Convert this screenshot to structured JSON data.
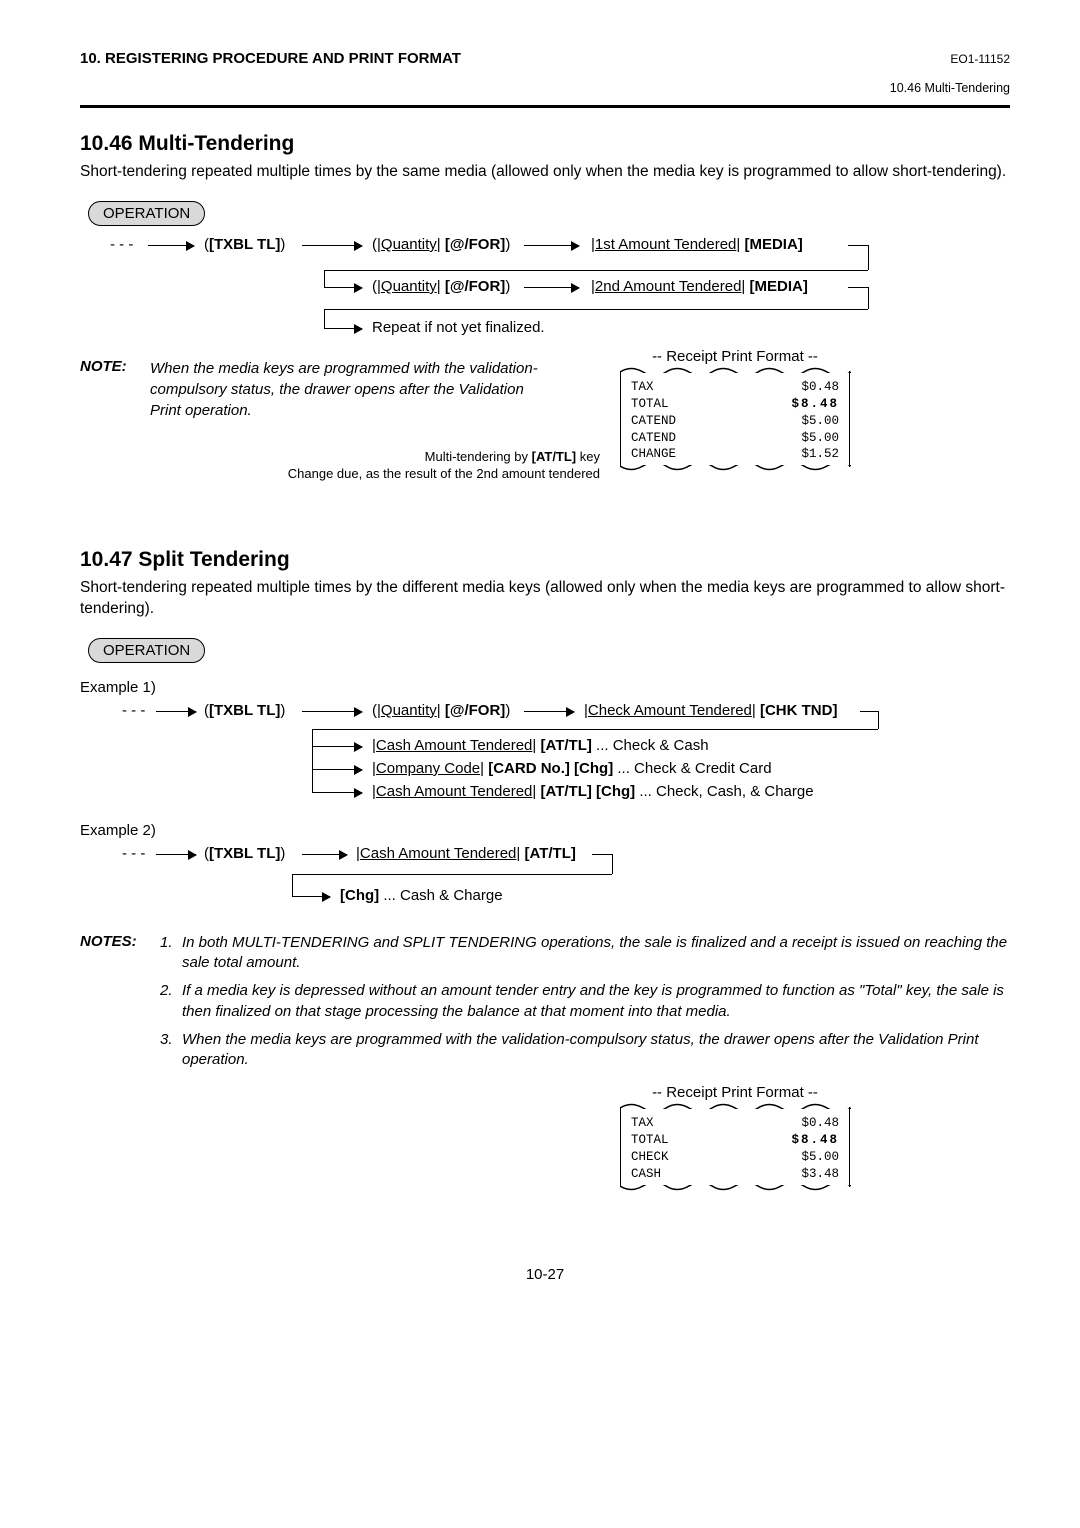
{
  "header": {
    "left": "10. REGISTERING PROCEDURE AND PRINT FORMAT",
    "right": "EO1-11152",
    "sub": "10.46 Multi-Tendering"
  },
  "s1": {
    "title": "10.46  Multi-Tendering",
    "body": "Short-tendering repeated multiple times by the same media (allowed only when the media key is programmed to allow short-tendering).",
    "op": "OPERATION",
    "flow": {
      "dots": "- - -",
      "txbl_l": "(",
      "txbl": "[TXBL TL]",
      "txbl_r": ")",
      "qty_l": "(|",
      "qty": "Quantity",
      "qty_mid": "| ",
      "atfor": "[@/FOR]",
      "qty_r": ")",
      "a1_l": "|",
      "a1": "1st Amount Tendered",
      "a1_mid": "| ",
      "a1_media": "[MEDIA]",
      "a2_l": "|",
      "a2": "2nd Amount Tendered",
      "a2_mid": "| ",
      "a2_media": "[MEDIA]",
      "repeat": "Repeat if not yet finalized."
    },
    "note_label": "NOTE:",
    "note_text": "When the media keys are programmed with the validation-compulsory status, the drawer opens after the Validation Print operation.",
    "cap1": "Multi-tendering by [AT/TL] key",
    "cap1_pre": "Multi-tendering by ",
    "cap1_key": "[AT/TL]",
    "cap1_post": " key",
    "cap2": "Change due, as the result of the 2nd amount tendered",
    "receipt_title": "-- Receipt Print Format --",
    "receipt": {
      "rows": [
        {
          "l": "TAX",
          "r": "$0.48"
        },
        {
          "l": "TOTAL",
          "r": "$8.48",
          "bold": true
        },
        {
          "l": "CATEND",
          "r": "$5.00"
        },
        {
          "l": "CATEND",
          "r": "$5.00"
        },
        {
          "l": "CHANGE",
          "r": "$1.52"
        }
      ]
    }
  },
  "s2": {
    "title": "10.47  Split Tendering",
    "body": "Short-tendering repeated multiple times by the different media keys (allowed only when the media keys are programmed to allow short-tendering).",
    "op": "OPERATION",
    "ex1": "Example 1)",
    "ex2": "Example 2)",
    "flow1": {
      "dots": "- - -",
      "txbl_l": "(",
      "txbl": "[TXBL TL]",
      "txbl_r": ")",
      "qty_l": "(|",
      "qty": "Quantity",
      "qty_mid": "| ",
      "atfor": "[@/FOR]",
      "qty_r": ")",
      "chk_l": "|",
      "chk": "Check Amount Tendered",
      "chk_mid": "| ",
      "chk_key": "[CHK TND]",
      "r1_l": "|",
      "r1": "Cash Amount Tendered",
      "r1_mid": "| ",
      "r1_key": "[AT/TL]",
      "r1_post": " ... Check & Cash",
      "r2_l": "|",
      "r2": "Company Code",
      "r2_mid": "| ",
      "r2_key": "[CARD No.] [Chg]",
      "r2_post": " ... Check & Credit Card",
      "r3_l": "|",
      "r3": "Cash Amount Tendered",
      "r3_mid": "| ",
      "r3_key": "[AT/TL] [Chg]",
      "r3_post": " ... Check, Cash, & Charge"
    },
    "flow2": {
      "dots": "- - -",
      "txbl_l": "(",
      "txbl": "[TXBL TL]",
      "txbl_r": ")",
      "cash_l": "|",
      "cash": "Cash Amount Tendered",
      "cash_mid": "| ",
      "cash_key": "[AT/TL]",
      "chg_key": "[Chg]",
      "chg_post": " ... Cash & Charge"
    },
    "notes_label": "NOTES:",
    "notes": [
      "In both MULTI-TENDERING and SPLIT TENDERING operations, the sale is finalized and a receipt is issued on reaching the sale total amount.",
      "If a media key is depressed without an amount tender entry and the key is programmed to function as \"Total\" key, the sale is then finalized on that stage processing the balance at that moment into that media.",
      "When the media keys are programmed with the validation-compulsory status, the drawer opens after the Validation Print operation."
    ],
    "receipt_title": "-- Receipt Print Format --",
    "receipt": {
      "rows": [
        {
          "l": "TAX",
          "r": "$0.48"
        },
        {
          "l": "TOTAL",
          "r": "$8.48",
          "bold": true
        },
        {
          "l": "CHECK",
          "r": "$5.00"
        },
        {
          "l": "CASH",
          "r": "$3.48"
        }
      ]
    }
  },
  "footer": "10-27"
}
